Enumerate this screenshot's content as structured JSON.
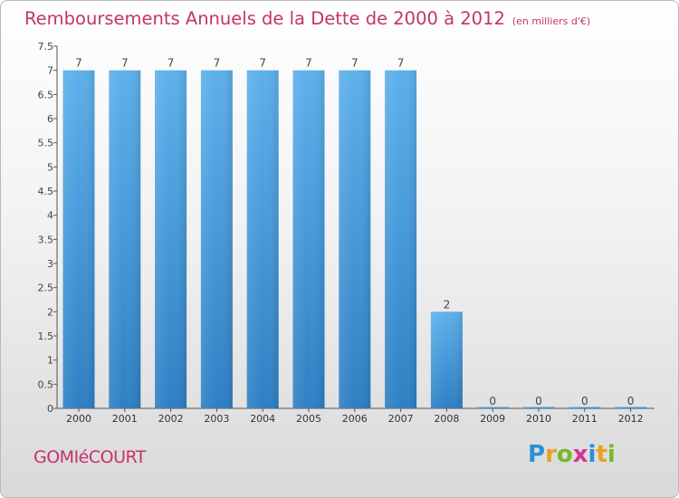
{
  "page": {
    "commune": "GOMIéCOURT",
    "brand_letters": [
      "P",
      "r",
      "o",
      "x",
      "i",
      "t",
      "i"
    ],
    "brand_colors": [
      "#2b8fd8",
      "#e8a21c",
      "#77b82a",
      "#d6338e",
      "#2b8fd8",
      "#e8a21c",
      "#77b82a"
    ]
  },
  "chart_data": {
    "type": "bar",
    "title": "Remboursements Annuels de la Dette de 2000 à 2012",
    "unit_label": "(en milliers d'€)",
    "xlabel": "",
    "ylabel": "",
    "categories": [
      "2000",
      "2001",
      "2002",
      "2003",
      "2004",
      "2005",
      "2006",
      "2007",
      "2008",
      "2009",
      "2010",
      "2011",
      "2012"
    ],
    "values": [
      7,
      7,
      7,
      7,
      7,
      7,
      7,
      7,
      2,
      0,
      0,
      0,
      0
    ],
    "data_labels": [
      "7",
      "7",
      "7",
      "7",
      "7",
      "7",
      "7",
      "7",
      "2",
      "0",
      "0",
      "0",
      "0"
    ],
    "ylim": [
      0,
      7.5
    ],
    "yticks": [
      0,
      0.5,
      1,
      1.5,
      2,
      2.5,
      3,
      3.5,
      4,
      4.5,
      5,
      5.5,
      6,
      6.5,
      7,
      7.5
    ],
    "ytick_labels": [
      "0",
      "0.5",
      "1",
      "1.5",
      "2",
      "2.5",
      "3",
      "3.5",
      "4",
      "4.5",
      "5",
      "5.5",
      "6",
      "6.5",
      "7",
      "7.5"
    ],
    "grid": false,
    "bar_color": "#4a9de0"
  }
}
